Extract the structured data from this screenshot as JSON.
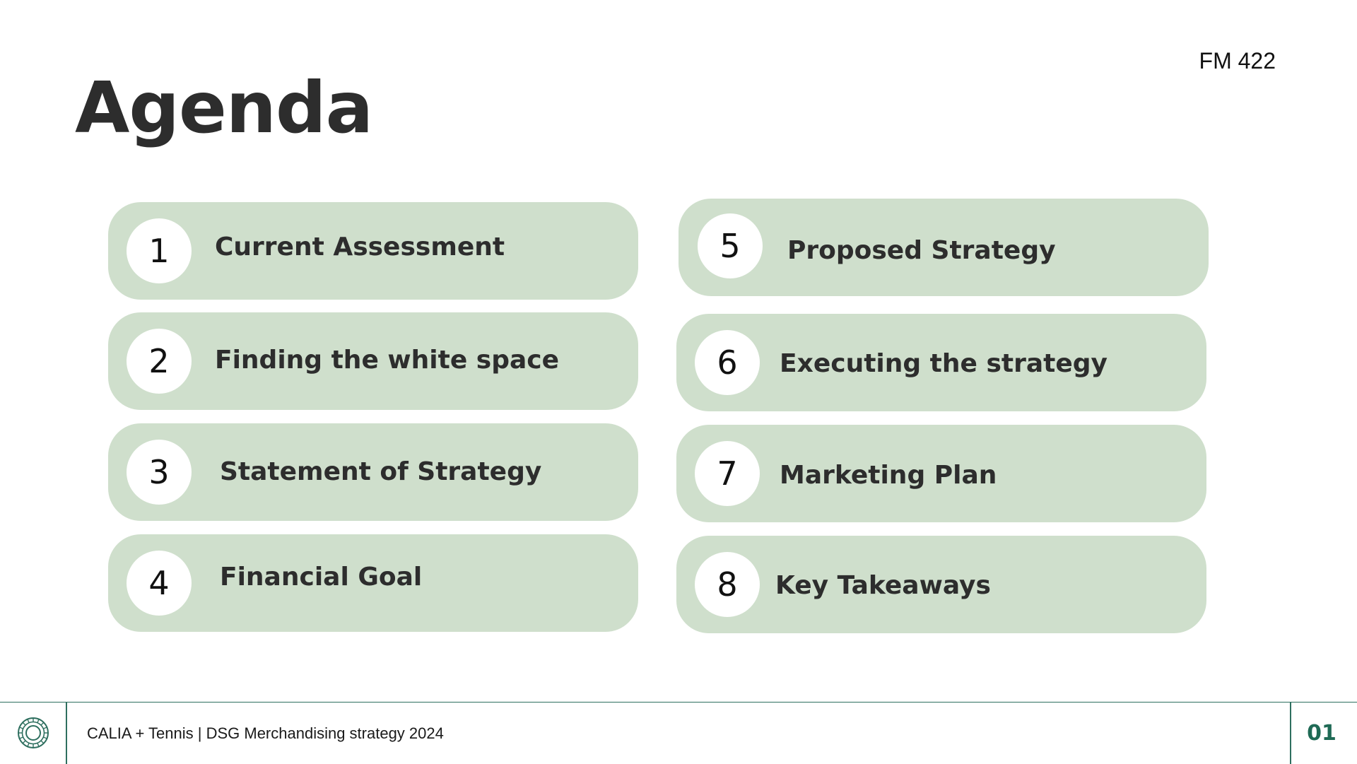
{
  "header": {
    "course_code": "FM 422",
    "title": "Agenda"
  },
  "agenda": {
    "items": [
      {
        "number": "1",
        "label": "Current Assessment"
      },
      {
        "number": "2",
        "label": "Finding the white space"
      },
      {
        "number": "3",
        "label": "Statement of Strategy"
      },
      {
        "number": "4",
        "label": "Financial Goal"
      },
      {
        "number": "5",
        "label": "Proposed Strategy"
      },
      {
        "number": "6",
        "label": "Executing the strategy"
      },
      {
        "number": "7",
        "label": "Marketing Plan"
      },
      {
        "number": "8",
        "label": "Key Takeaways"
      }
    ]
  },
  "footer": {
    "logo_icon": "circular-emblem-icon",
    "text": "CALIA + Tennis | DSG Merchandising strategy 2024",
    "page_number": "01"
  },
  "colors": {
    "item_background": "#cfdfcc",
    "accent": "#1f6a55",
    "footer_rule": "#2e6f5f",
    "title": "#2d2d2d"
  }
}
